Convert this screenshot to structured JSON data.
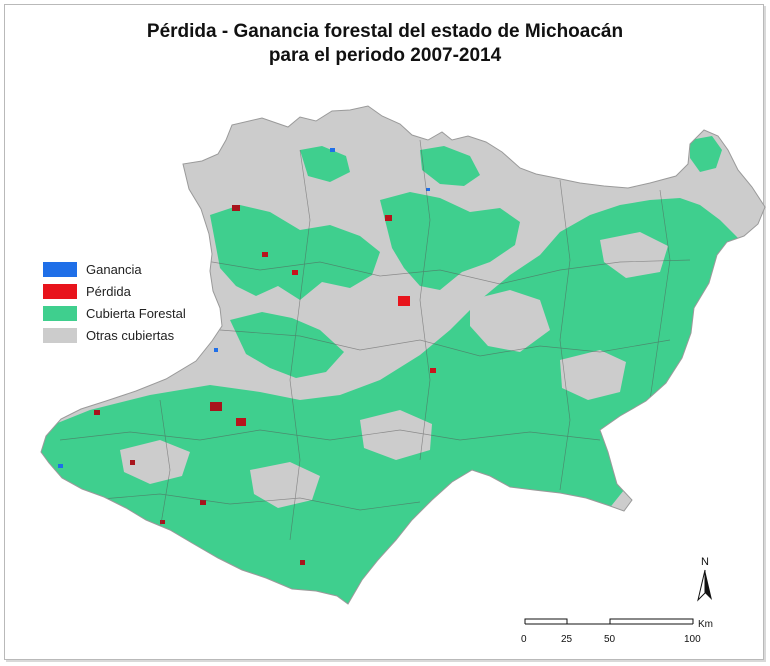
{
  "title": {
    "line1": "Pérdida - Ganancia forestal del estado de Michoacán",
    "line2": "para el periodo 2007-2014"
  },
  "legend": [
    {
      "label": "Ganancia",
      "color": "#1f6fe8"
    },
    {
      "label": "Pérdida",
      "color": "#e8141c"
    },
    {
      "label": "Cubierta Forestal",
      "color": "#3fcf8e"
    },
    {
      "label": "Otras cubiertas",
      "color": "#cccccc"
    }
  ],
  "north_arrow": {
    "label": "N",
    "icon": "north-arrow-icon"
  },
  "scale_bar": {
    "ticks": [
      "0",
      "25",
      "50",
      "100"
    ],
    "unit": "Km"
  }
}
